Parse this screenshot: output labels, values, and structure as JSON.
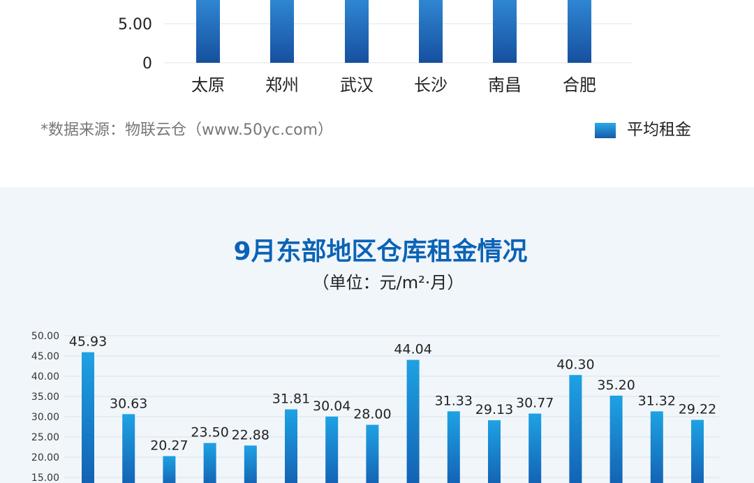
{
  "chart_data": [
    {
      "type": "bar",
      "title": "",
      "categories": [
        "太原",
        "郑州",
        "武汉",
        "长沙",
        "南昌",
        "合肥"
      ],
      "y_ticks": [
        "5.00",
        "0"
      ],
      "ylim": [
        0,
        5.0
      ],
      "values": [
        5.0,
        5.0,
        5.0,
        5.0,
        5.0,
        5.0
      ],
      "legend": [
        "平均租金"
      ],
      "legend_position": "bottom-right",
      "source": "*数据来源：物联云仓（www.50yc.com）",
      "bar_color": "#1e5eae"
    },
    {
      "type": "bar",
      "title": "9月东部地区仓库租金情况",
      "subtitle": "（单位：元/m²·月）",
      "y_ticks": [
        "50.00",
        "45.00",
        "40.00",
        "35.00",
        "30.00",
        "25.00",
        "20.00",
        "15.00"
      ],
      "ylim": [
        15,
        50
      ],
      "values": [
        45.93,
        30.63,
        20.27,
        23.5,
        22.88,
        31.81,
        30.04,
        28.0,
        44.04,
        31.33,
        29.13,
        30.77,
        40.3,
        35.2,
        31.32,
        29.22
      ],
      "labels": [
        "45.93",
        "30.63",
        "20.27",
        "23.50",
        "22.88",
        "31.81",
        "30.04",
        "28.00",
        "44.04",
        "31.33",
        "29.13",
        "30.77",
        "40.30",
        "35.20",
        "31.32",
        "29.22"
      ],
      "grid": true,
      "bar_color": "#1a74c7"
    }
  ]
}
